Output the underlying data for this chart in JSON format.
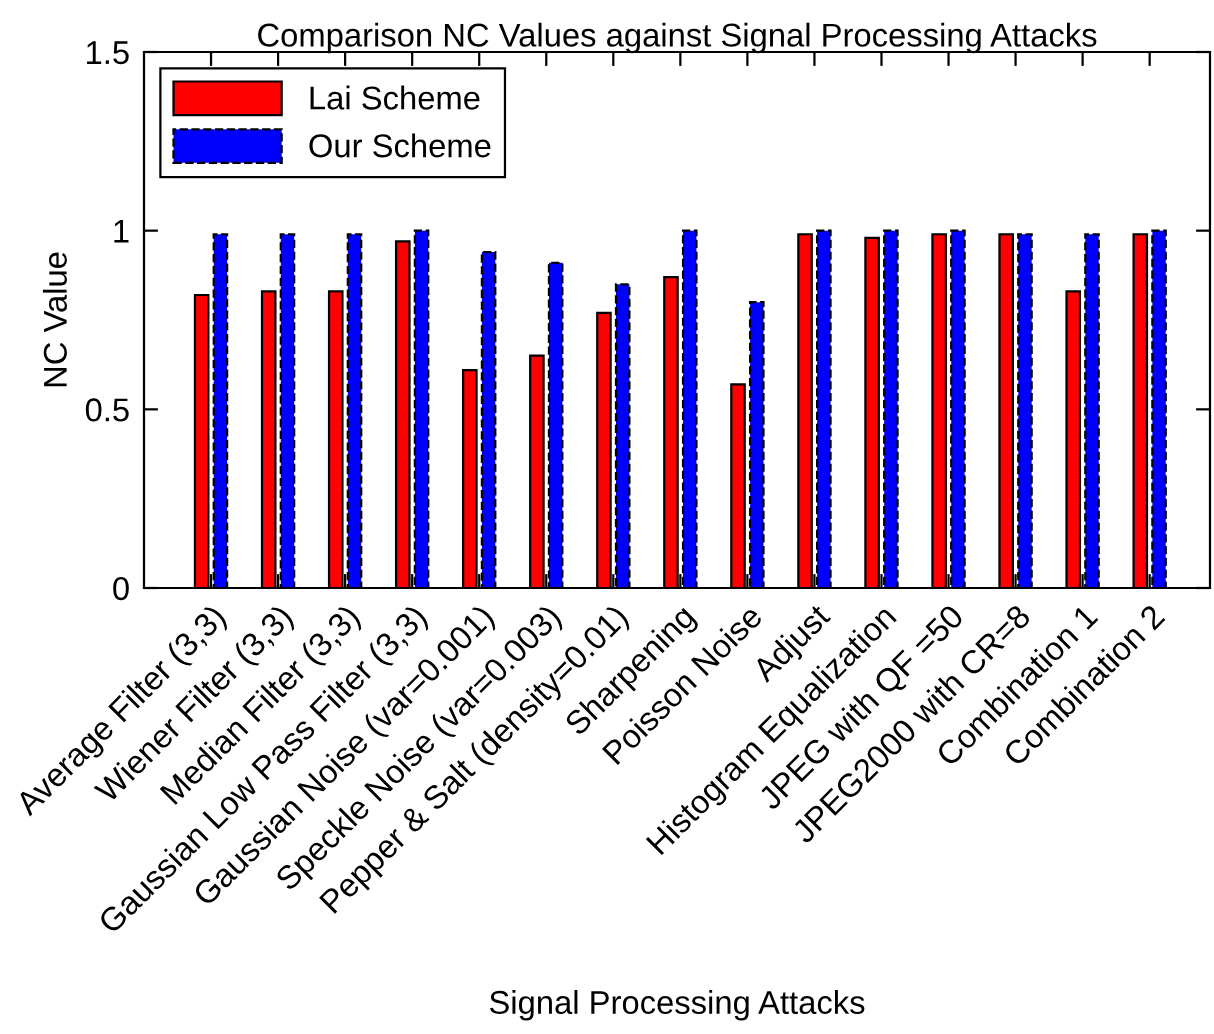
{
  "chart_data": {
    "type": "bar",
    "title": "Comparison NC Values against Signal Processing Attacks",
    "xlabel": "Signal Processing Attacks",
    "ylabel": "NC Value",
    "categories": [
      "Average Filter (3,3)",
      "Wiener Filter (3,3)",
      "Median Filter (3,3)",
      "Gaussian Low Pass Filter (3,3)",
      "Gaussian Noise (var=0.001)",
      "Speckle Noise (var=0.003)",
      "Pepper & Salt (density=0.01)",
      "Sharpening",
      "Poisson Noise",
      "Adjust",
      "Histogram Equalization",
      "JPEG with QF =50",
      "JPEG2000 with CR=8",
      "Combination 1",
      "Combination 2"
    ],
    "series": [
      {
        "name": "Lai Scheme",
        "color": "#ff0000",
        "values": [
          0.82,
          0.83,
          0.83,
          0.97,
          0.61,
          0.65,
          0.77,
          0.87,
          0.57,
          0.99,
          0.98,
          0.99,
          0.99,
          0.83,
          0.99
        ]
      },
      {
        "name": "Our Scheme",
        "color": "#0000ff",
        "line_style": "dashed",
        "values": [
          0.99,
          0.99,
          0.99,
          1.0,
          0.94,
          0.91,
          0.85,
          1.0,
          0.8,
          1.0,
          1.0,
          1.0,
          0.99,
          0.99,
          1.0
        ]
      }
    ],
    "ylim": [
      0,
      1.5
    ],
    "yticks": [
      0,
      0.5,
      1,
      1.5
    ],
    "legend": "top left"
  }
}
